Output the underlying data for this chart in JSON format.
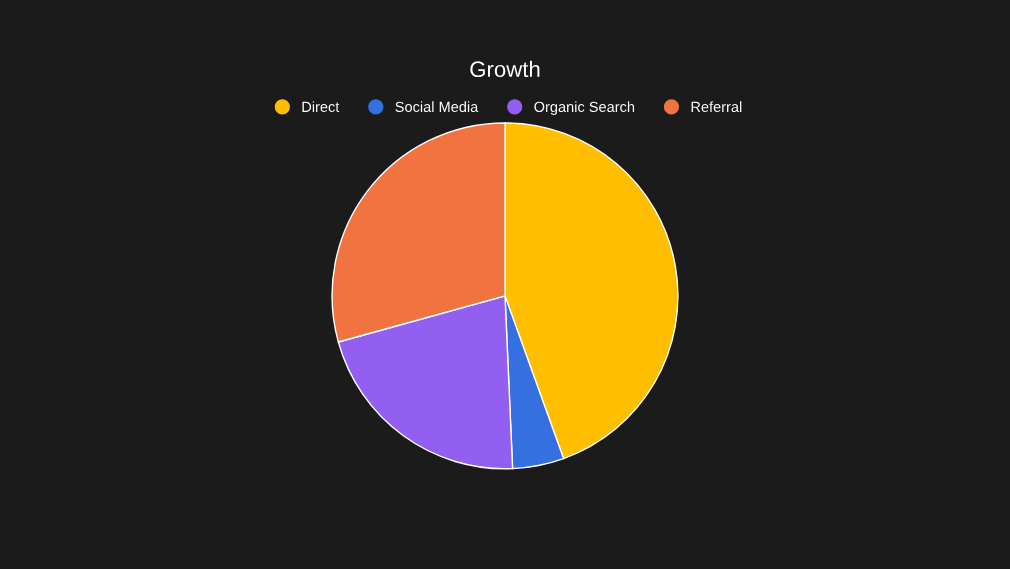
{
  "chart_data": {
    "type": "pie",
    "title": "Growth",
    "categories": [
      "Direct",
      "Social Media",
      "Organic Search",
      "Referral"
    ],
    "values": [
      44.5,
      4.8,
      21.4,
      29.3
    ],
    "colors": [
      "#ffbf00",
      "#3570e0",
      "#925ff0",
      "#f07340"
    ],
    "legend": "top"
  }
}
